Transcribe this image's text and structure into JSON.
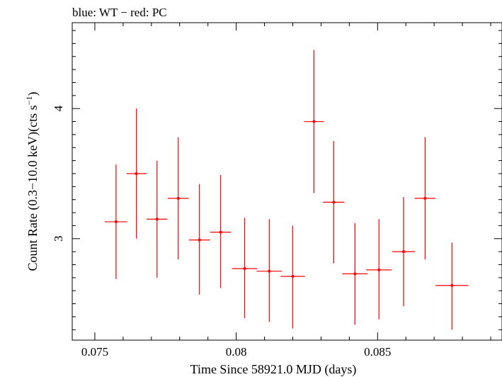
{
  "chart_data": {
    "type": "scatter",
    "title": "blue: WT − red: PC",
    "xlabel": "Time Since 58921.0 MJD (days)",
    "ylabel_main": "Count Rate (0.3−10.0 keV)(cts s",
    "ylabel_sup": "−1",
    "ylabel_tail": ")",
    "xlim": [
      0.0742,
      0.0894
    ],
    "ylim": [
      2.22,
      4.66
    ],
    "x_ticks": [
      0.075,
      0.08,
      0.085
    ],
    "x_tick_labels": [
      "0.075",
      "0.08",
      "0.085"
    ],
    "y_ticks": [
      3,
      4
    ],
    "y_tick_labels": [
      "3",
      "4"
    ],
    "grid": false,
    "series": [
      {
        "color": "#ff0000",
        "points": [
          {
            "x": 0.07575,
            "xerr": 0.0004,
            "y": 3.13,
            "ylo": 2.69,
            "yhi": 3.57
          },
          {
            "x": 0.07647,
            "xerr": 0.00035,
            "y": 3.5,
            "ylo": 3.0,
            "yhi": 4.0
          },
          {
            "x": 0.0772,
            "xerr": 0.00037,
            "y": 3.15,
            "ylo": 2.7,
            "yhi": 3.6
          },
          {
            "x": 0.07795,
            "xerr": 0.00037,
            "y": 3.31,
            "ylo": 2.84,
            "yhi": 3.78
          },
          {
            "x": 0.0787,
            "xerr": 0.00037,
            "y": 2.99,
            "ylo": 2.57,
            "yhi": 3.42
          },
          {
            "x": 0.07945,
            "xerr": 0.00037,
            "y": 3.05,
            "ylo": 2.62,
            "yhi": 3.49
          },
          {
            "x": 0.0803,
            "xerr": 0.00045,
            "y": 2.77,
            "ylo": 2.39,
            "yhi": 3.16
          },
          {
            "x": 0.08117,
            "xerr": 0.00045,
            "y": 2.75,
            "ylo": 2.36,
            "yhi": 3.15
          },
          {
            "x": 0.082,
            "xerr": 0.00043,
            "y": 2.71,
            "ylo": 2.31,
            "yhi": 3.1
          },
          {
            "x": 0.08275,
            "xerr": 0.00035,
            "y": 3.9,
            "ylo": 3.35,
            "yhi": 4.45
          },
          {
            "x": 0.08345,
            "xerr": 0.00038,
            "y": 3.28,
            "ylo": 2.81,
            "yhi": 3.75
          },
          {
            "x": 0.0842,
            "xerr": 0.00045,
            "y": 2.73,
            "ylo": 2.34,
            "yhi": 3.12
          },
          {
            "x": 0.08505,
            "xerr": 0.00045,
            "y": 2.76,
            "ylo": 2.38,
            "yhi": 3.15
          },
          {
            "x": 0.08592,
            "xerr": 0.0004,
            "y": 2.9,
            "ylo": 2.48,
            "yhi": 3.32
          },
          {
            "x": 0.08668,
            "xerr": 0.00037,
            "y": 3.31,
            "ylo": 2.84,
            "yhi": 3.78
          },
          {
            "x": 0.08763,
            "xerr": 0.00058,
            "y": 2.64,
            "ylo": 2.3,
            "yhi": 2.97
          }
        ]
      }
    ]
  }
}
